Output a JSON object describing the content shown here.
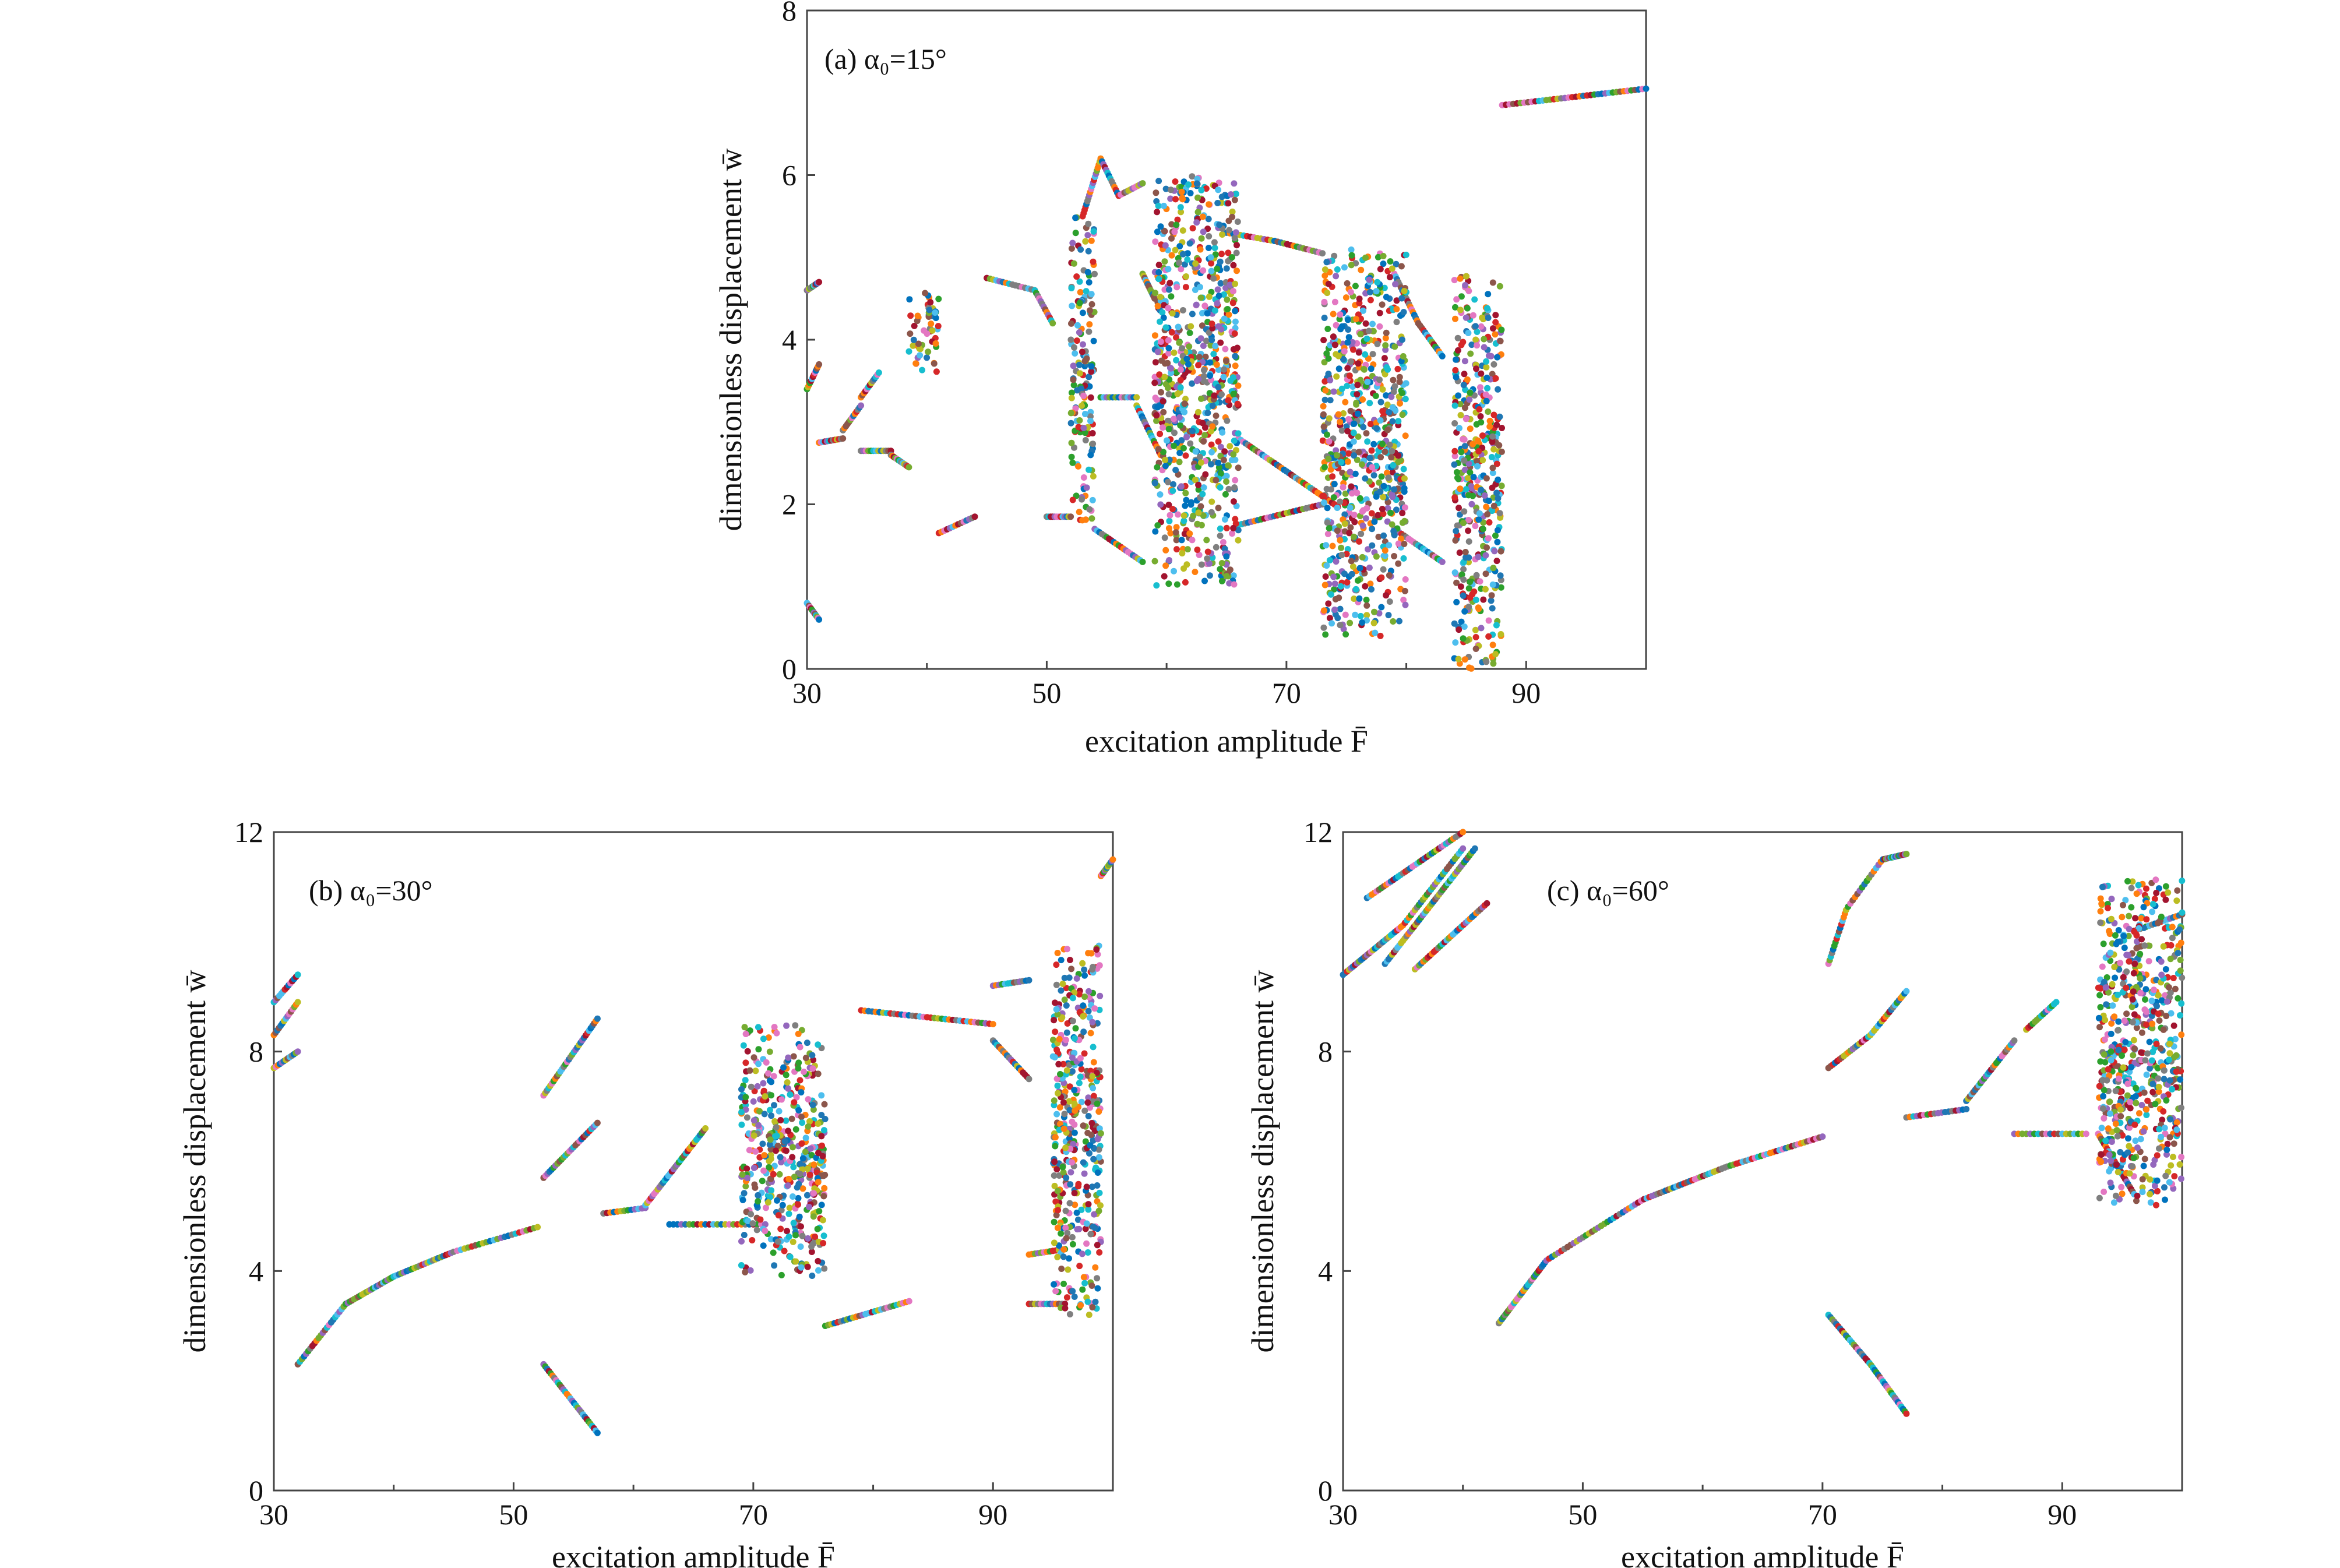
{
  "chart_data": [
    {
      "type": "scatter",
      "panel_label": "(a) α₀=15°",
      "xlabel": "excitation amplitude F̄",
      "ylabel": "dimensionless displacement w̄",
      "xlim": [
        30,
        100
      ],
      "ylim": [
        0,
        8
      ],
      "xticks": [
        "30",
        "50",
        "70",
        "90"
      ],
      "yticks": [
        "0",
        "2",
        "4",
        "6",
        "8"
      ],
      "branches": [
        {
          "x": [
            30.0,
            31.0
          ],
          "y": [
            4.6,
            4.7
          ]
        },
        {
          "x": [
            30.0,
            31.0
          ],
          "y": [
            3.4,
            3.7
          ]
        },
        {
          "x": [
            30.0,
            31.0
          ],
          "y": [
            0.8,
            0.6
          ]
        },
        {
          "x": [
            31.0,
            33.0
          ],
          "y": [
            2.75,
            2.8
          ]
        },
        {
          "x": [
            33.0,
            34.5
          ],
          "y": [
            2.9,
            3.2
          ]
        },
        {
          "x": [
            34.5,
            36.0
          ],
          "y": [
            3.3,
            3.6
          ]
        },
        {
          "x": [
            34.5,
            37.0
          ],
          "y": [
            2.65,
            2.65
          ]
        },
        {
          "x": [
            37.0,
            38.5
          ],
          "y": [
            2.6,
            2.45
          ]
        },
        {
          "x": [
            41.0,
            44.0
          ],
          "y": [
            1.65,
            1.85
          ]
        },
        {
          "x": [
            45.0,
            49.0
          ],
          "y": [
            4.75,
            4.6
          ]
        },
        {
          "x": [
            49.0,
            50.5
          ],
          "y": [
            4.6,
            4.2
          ]
        },
        {
          "x": [
            50.0,
            52.0
          ],
          "y": [
            1.85,
            1.85
          ]
        },
        {
          "x": [
            53.0,
            54.5
          ],
          "y": [
            5.5,
            6.2
          ]
        },
        {
          "x": [
            54.5,
            56.0
          ],
          "y": [
            6.2,
            5.75
          ]
        },
        {
          "x": [
            56.0,
            58.0
          ],
          "y": [
            5.75,
            5.9
          ]
        },
        {
          "x": [
            58.0,
            59.0
          ],
          "y": [
            4.8,
            4.5
          ]
        },
        {
          "x": [
            54.5,
            57.5
          ],
          "y": [
            3.3,
            3.3
          ]
        },
        {
          "x": [
            57.5,
            59.5
          ],
          "y": [
            3.2,
            2.6
          ]
        },
        {
          "x": [
            54.0,
            58.0
          ],
          "y": [
            1.7,
            1.3
          ]
        },
        {
          "x": [
            65.0,
            69.0
          ],
          "y": [
            5.3,
            5.2
          ]
        },
        {
          "x": [
            69.0,
            73.0
          ],
          "y": [
            5.2,
            5.05
          ]
        },
        {
          "x": [
            66.0,
            73.0
          ],
          "y": [
            1.75,
            2.0
          ]
        },
        {
          "x": [
            66.0,
            74.0
          ],
          "y": [
            2.8,
            2.0
          ]
        },
        {
          "x": [
            79.0,
            81.0
          ],
          "y": [
            4.8,
            4.2
          ]
        },
        {
          "x": [
            81.0,
            83.0
          ],
          "y": [
            4.2,
            3.8
          ]
        },
        {
          "x": [
            79.0,
            83.0
          ],
          "y": [
            1.7,
            1.3
          ]
        },
        {
          "x": [
            88.0,
            100.0
          ],
          "y": [
            6.85,
            7.05
          ]
        }
      ],
      "chaotic_bands": [
        {
          "x": [
            38.5,
            41.0
          ],
          "y": [
            3.6,
            4.6
          ]
        },
        {
          "x": [
            52.0,
            54.0
          ],
          "y": [
            1.8,
            5.5
          ]
        },
        {
          "x": [
            59.0,
            66.0
          ],
          "y": [
            1.0,
            6.0
          ]
        },
        {
          "x": [
            73.0,
            80.0
          ],
          "y": [
            0.4,
            5.1
          ]
        },
        {
          "x": [
            84.0,
            88.0
          ],
          "y": [
            0.0,
            4.8
          ]
        }
      ]
    },
    {
      "type": "scatter",
      "panel_label": "(b) α₀=30°",
      "xlabel": "excitation amplitude F̄",
      "ylabel": "dimensionless displacement w̄",
      "xlim": [
        30,
        100
      ],
      "ylim": [
        0,
        12
      ],
      "xticks": [
        "30",
        "50",
        "70",
        "90"
      ],
      "yticks": [
        "0",
        "4",
        "8",
        "12"
      ],
      "branches": [
        {
          "x": [
            30.0,
            32.0
          ],
          "y": [
            8.9,
            9.4
          ]
        },
        {
          "x": [
            30.0,
            32.0
          ],
          "y": [
            8.3,
            8.9
          ]
        },
        {
          "x": [
            30.0,
            32.0
          ],
          "y": [
            7.7,
            8.0
          ]
        },
        {
          "x": [
            32.0,
            36.0,
            40.0,
            45.0,
            52.0
          ],
          "y": [
            2.3,
            3.4,
            3.9,
            4.35,
            4.8
          ]
        },
        {
          "x": [
            52.5,
            57.0
          ],
          "y": [
            7.2,
            8.6
          ]
        },
        {
          "x": [
            52.5,
            57.0
          ],
          "y": [
            5.7,
            6.7
          ]
        },
        {
          "x": [
            52.5,
            57.0
          ],
          "y": [
            2.3,
            1.05
          ]
        },
        {
          "x": [
            57.5,
            61.0
          ],
          "y": [
            5.05,
            5.15
          ]
        },
        {
          "x": [
            61.0,
            66.0
          ],
          "y": [
            5.2,
            6.6
          ]
        },
        {
          "x": [
            63.0,
            71.0
          ],
          "y": [
            4.85,
            4.85
          ]
        },
        {
          "x": [
            76.0,
            83.0
          ],
          "y": [
            3.0,
            3.45
          ]
        },
        {
          "x": [
            79.0,
            90.0
          ],
          "y": [
            8.75,
            8.5
          ]
        },
        {
          "x": [
            90.0,
            93.0
          ],
          "y": [
            9.2,
            9.3
          ]
        },
        {
          "x": [
            90.0,
            93.0
          ],
          "y": [
            8.2,
            7.5
          ]
        },
        {
          "x": [
            93.0,
            96.0
          ],
          "y": [
            3.4,
            3.4
          ]
        },
        {
          "x": [
            93.0,
            96.0
          ],
          "y": [
            4.3,
            4.4
          ]
        },
        {
          "x": [
            99.0,
            100.0
          ],
          "y": [
            11.2,
            11.5
          ]
        }
      ],
      "chaotic_bands": [
        {
          "x": [
            69.0,
            76.0
          ],
          "y": [
            3.9,
            8.5
          ]
        },
        {
          "x": [
            95.0,
            99.0
          ],
          "y": [
            3.2,
            10.0
          ]
        }
      ]
    },
    {
      "type": "scatter",
      "panel_label": "(c) α₀=60°",
      "xlabel": "excitation amplitude F̄",
      "ylabel": "dimensionless displacement w̄",
      "xlim": [
        30,
        100
      ],
      "ylim": [
        0,
        12
      ],
      "xticks": [
        "30",
        "50",
        "70",
        "90"
      ],
      "yticks": [
        "0",
        "4",
        "8",
        "12"
      ],
      "branches": [
        {
          "x": [
            30.0,
            35.0,
            40.0
          ],
          "y": [
            9.4,
            10.3,
            11.7
          ]
        },
        {
          "x": [
            32.0,
            40.0
          ],
          "y": [
            10.8,
            12.0
          ]
        },
        {
          "x": [
            33.5,
            41.0
          ],
          "y": [
            9.6,
            11.7
          ]
        },
        {
          "x": [
            36.0,
            42.0
          ],
          "y": [
            9.5,
            10.7
          ]
        },
        {
          "x": [
            43.0,
            47.0,
            55.0,
            62.0,
            70.0
          ],
          "y": [
            3.05,
            4.2,
            5.3,
            5.9,
            6.45
          ]
        },
        {
          "x": [
            70.5,
            72.0,
            75.0,
            77.0
          ],
          "y": [
            9.6,
            10.6,
            11.5,
            11.6
          ]
        },
        {
          "x": [
            70.5,
            74.0,
            77.0
          ],
          "y": [
            7.7,
            8.3,
            9.1
          ]
        },
        {
          "x": [
            70.5,
            74.0,
            77.0
          ],
          "y": [
            3.2,
            2.3,
            1.4
          ]
        },
        {
          "x": [
            77.0,
            82.0
          ],
          "y": [
            6.8,
            6.95
          ]
        },
        {
          "x": [
            82.0,
            86.0
          ],
          "y": [
            7.1,
            8.2
          ]
        },
        {
          "x": [
            86.0,
            92.0
          ],
          "y": [
            6.5,
            6.5
          ]
        },
        {
          "x": [
            87.0,
            89.5
          ],
          "y": [
            8.4,
            8.9
          ]
        },
        {
          "x": [
            93.0,
            96.0
          ],
          "y": [
            6.5,
            5.4
          ]
        },
        {
          "x": [
            96.0,
            100.0
          ],
          "y": [
            10.2,
            10.5
          ]
        }
      ],
      "chaotic_bands": [
        {
          "x": [
            93.0,
            100.0
          ],
          "y": [
            5.2,
            11.2
          ]
        }
      ]
    }
  ]
}
